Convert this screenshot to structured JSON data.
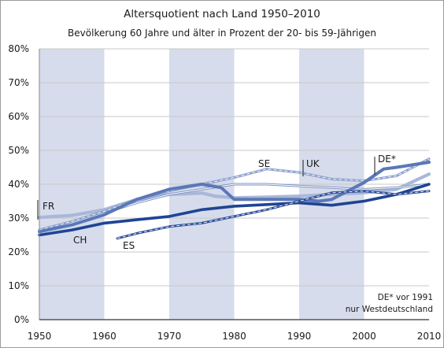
{
  "chart_data": {
    "type": "line",
    "title": "Altersquotient nach Land 1950–2010",
    "subtitle": "Bevölkerung 60 Jahre und älter in Prozent der 20- bis 59-Jährigen",
    "xlabel": "",
    "ylabel": "",
    "xlim": [
      1950,
      2010
    ],
    "ylim": [
      0,
      80
    ],
    "x_ticks": [
      "1950",
      "1960",
      "1970",
      "1980",
      "1990",
      "2000",
      "2010"
    ],
    "y_ticks": [
      "0%",
      "10%",
      "20%",
      "30%",
      "40%",
      "50%",
      "60%",
      "70%",
      "80%"
    ],
    "shaded_bands": [
      [
        1950,
        1960
      ],
      [
        1970,
        1980
      ],
      [
        1990,
        2000
      ]
    ],
    "grid": "horizontal",
    "annotation": [
      "DE* vor 1991",
      "nur Westdeutschland"
    ],
    "series": [
      {
        "name": "FR",
        "color": "#a9b8d9",
        "x": [
          1950,
          1955,
          1960,
          1965,
          1970,
          1973,
          1975,
          1977,
          1980,
          1985,
          1990,
          1995,
          2000,
          2005,
          2010
        ],
        "y": [
          30.2,
          30.8,
          32.5,
          35.5,
          37.0,
          37.2,
          37.4,
          36.5,
          36.0,
          36.2,
          36.5,
          37.0,
          37.5,
          38.5,
          43.0
        ]
      },
      {
        "name": "SE",
        "color": "#8fa3cf",
        "x": [
          1950,
          1955,
          1960,
          1965,
          1970,
          1975,
          1980,
          1985,
          1990,
          1995,
          2000,
          2005,
          2010
        ],
        "y": [
          26.5,
          29.0,
          32.0,
          35.5,
          38.0,
          40.0,
          42.0,
          44.5,
          43.5,
          41.5,
          41.0,
          42.5,
          47.5
        ]
      },
      {
        "name": "UK",
        "color": "#7f95c6",
        "x": [
          1950,
          1955,
          1960,
          1965,
          1970,
          1975,
          1980,
          1985,
          1990,
          1995,
          2000,
          2005,
          2010
        ],
        "y": [
          26.0,
          28.5,
          31.5,
          34.5,
          37.0,
          38.5,
          40.0,
          40.0,
          39.5,
          39.0,
          38.5,
          39.0,
          40.0
        ]
      },
      {
        "name": "DE*",
        "color": "#5a77b8",
        "x": [
          1950,
          1955,
          1960,
          1965,
          1970,
          1975,
          1978,
          1980,
          1985,
          1990,
          1993,
          1995,
          1998,
          2000,
          2003,
          2005,
          2010
        ],
        "y": [
          26.0,
          28.0,
          31.0,
          35.5,
          38.5,
          40.0,
          39.0,
          35.5,
          35.5,
          35.5,
          35.0,
          35.5,
          38.5,
          40.5,
          44.5,
          45.0,
          46.5
        ]
      },
      {
        "name": "CH",
        "color": "#1f4494",
        "x": [
          1950,
          1955,
          1960,
          1965,
          1970,
          1975,
          1980,
          1985,
          1990,
          1995,
          2000,
          2005,
          2010
        ],
        "y": [
          25.0,
          26.5,
          28.5,
          29.5,
          30.5,
          32.5,
          33.5,
          34.0,
          34.5,
          33.8,
          35.0,
          37.0,
          40.0
        ]
      },
      {
        "name": "ES",
        "color": "#2f4f99",
        "x": [
          1962,
          1965,
          1970,
          1975,
          1980,
          1985,
          1990,
          1995,
          2000,
          2005,
          2010
        ],
        "y": [
          24.0,
          25.5,
          27.5,
          28.5,
          30.5,
          32.5,
          35.0,
          37.5,
          38.0,
          37.0,
          38.0
        ]
      }
    ]
  }
}
